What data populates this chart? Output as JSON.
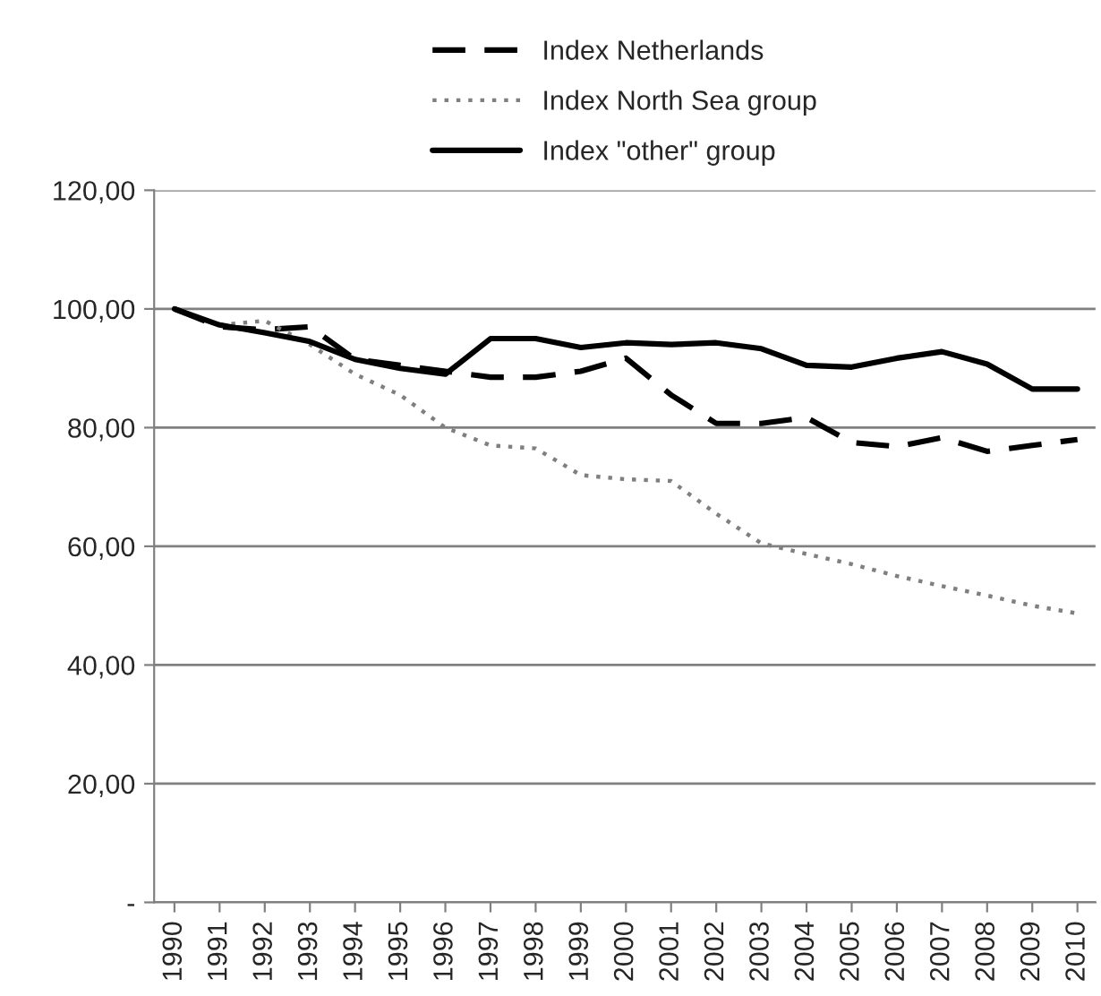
{
  "chart_data": {
    "type": "line",
    "categories": [
      "1990",
      "1991",
      "1992",
      "1993",
      "1994",
      "1995",
      "1996",
      "1997",
      "1998",
      "1999",
      "2000",
      "2001",
      "2002",
      "2003",
      "2004",
      "2005",
      "2006",
      "2007",
      "2008",
      "2009",
      "2010"
    ],
    "series": [
      {
        "name": "Index Netherlands",
        "color": "#000000",
        "line_style": "dashed",
        "values": [
          100,
          97,
          96.5,
          97,
          91.5,
          90.5,
          89.5,
          88.5,
          88.5,
          89.5,
          91.7,
          85.5,
          80.7,
          80.7,
          81.7,
          77.5,
          76.8,
          78.3,
          76,
          77,
          78
        ]
      },
      {
        "name": "Index North Sea group",
        "color": "#7f7f7f",
        "line_style": "dotted",
        "values": [
          100,
          97.3,
          98,
          94,
          89,
          85.5,
          80,
          77,
          76.5,
          72,
          71.3,
          71,
          65.5,
          60.5,
          58.7,
          57,
          55,
          53.3,
          51.7,
          50,
          48.7
        ]
      },
      {
        "name": "Index \"other\" group",
        "color": "#000000",
        "line_style": "solid",
        "values": [
          100,
          97.3,
          96,
          94.5,
          91.5,
          90,
          89,
          95,
          95,
          93.5,
          94.3,
          94,
          94.3,
          93.3,
          90.5,
          90.2,
          91.7,
          92.8,
          90.7,
          86.5,
          86.5
        ]
      }
    ],
    "ylim": [
      0,
      120
    ],
    "yticks": [
      {
        "value": 0,
        "label": "-"
      },
      {
        "value": 20,
        "label": "20,00"
      },
      {
        "value": 40,
        "label": "40,00"
      },
      {
        "value": 60,
        "label": "60,00"
      },
      {
        "value": 80,
        "label": "80,00"
      },
      {
        "value": 100,
        "label": "100,00"
      },
      {
        "value": 120,
        "label": "120,00"
      }
    ],
    "grid": "y",
    "legend": "top",
    "marker": "none"
  }
}
